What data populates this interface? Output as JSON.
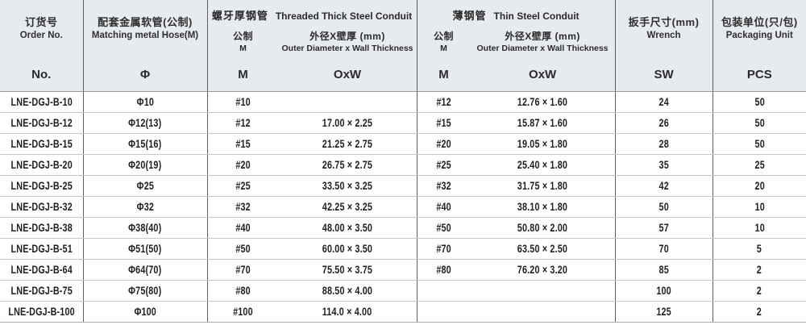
{
  "table": {
    "columns": {
      "order": {
        "zh": "订货号",
        "en": "Order No.",
        "symbol": "No."
      },
      "hose": {
        "zh": "配套金属软管(公制)",
        "en": "Matching metal Hose(M)",
        "symbol": "Φ"
      },
      "threaded": {
        "zh": "螺牙厚钢管",
        "en": "Threaded Thick Steel Conduit",
        "metric": {
          "zh": "公制",
          "en": "M",
          "symbol": "M"
        },
        "size": {
          "zh": "外径X壁厚 (mm)",
          "en": "Outer Diameter x Wall Thickness",
          "symbol": "OxW"
        }
      },
      "thin": {
        "zh": "薄钢管",
        "en": "Thin Steel Conduit",
        "metric": {
          "zh": "公制",
          "en": "M",
          "symbol": "M"
        },
        "size": {
          "zh": "外径X壁厚 (mm)",
          "en": "Outer Diameter x Wall Thickness",
          "symbol": "OxW"
        }
      },
      "wrench": {
        "zh": "扳手尺寸(mm)",
        "en": "Wrench",
        "symbol": "SW"
      },
      "packaging": {
        "zh": "包装单位(只/包)",
        "en": "Packaging Unit",
        "symbol": "PCS"
      }
    },
    "rows": [
      {
        "order_no": "LNE-DGJ-B-10",
        "hose": "Φ10",
        "threaded_m": "#10",
        "threaded_oxw": "",
        "thin_m": "#12",
        "thin_oxw": "12.76 × 1.60",
        "sw": "24",
        "pcs": "50"
      },
      {
        "order_no": "LNE-DGJ-B-12",
        "hose": "Φ12(13)",
        "threaded_m": "#12",
        "threaded_oxw": "17.00 × 2.25",
        "thin_m": "#15",
        "thin_oxw": "15.87 × 1.60",
        "sw": "26",
        "pcs": "50"
      },
      {
        "order_no": "LNE-DGJ-B-15",
        "hose": "Φ15(16)",
        "threaded_m": "#15",
        "threaded_oxw": "21.25 × 2.75",
        "thin_m": "#20",
        "thin_oxw": "19.05 × 1.80",
        "sw": "28",
        "pcs": "50"
      },
      {
        "order_no": "LNE-DGJ-B-20",
        "hose": "Φ20(19)",
        "threaded_m": "#20",
        "threaded_oxw": "26.75 × 2.75",
        "thin_m": "#25",
        "thin_oxw": "25.40 × 1.80",
        "sw": "35",
        "pcs": "25"
      },
      {
        "order_no": "LNE-DGJ-B-25",
        "hose": "Φ25",
        "threaded_m": "#25",
        "threaded_oxw": "33.50 × 3.25",
        "thin_m": "#32",
        "thin_oxw": "31.75 × 1.80",
        "sw": "42",
        "pcs": "20"
      },
      {
        "order_no": "LNE-DGJ-B-32",
        "hose": "Φ32",
        "threaded_m": "#32",
        "threaded_oxw": "42.25 × 3.25",
        "thin_m": "#40",
        "thin_oxw": "38.10 × 1.80",
        "sw": "50",
        "pcs": "10"
      },
      {
        "order_no": "LNE-DGJ-B-38",
        "hose": "Φ38(40)",
        "threaded_m": "#40",
        "threaded_oxw": "48.00 × 3.50",
        "thin_m": "#50",
        "thin_oxw": "50.80 × 2.00",
        "sw": "57",
        "pcs": "10"
      },
      {
        "order_no": "LNE-DGJ-B-51",
        "hose": "Φ51(50)",
        "threaded_m": "#50",
        "threaded_oxw": "60.00 × 3.50",
        "thin_m": "#70",
        "thin_oxw": "63.50 × 2.50",
        "sw": "70",
        "pcs": "5"
      },
      {
        "order_no": "LNE-DGJ-B-64",
        "hose": "Φ64(70)",
        "threaded_m": "#70",
        "threaded_oxw": "75.50 × 3.75",
        "thin_m": "#80",
        "thin_oxw": "76.20 × 3.20",
        "sw": "85",
        "pcs": "2"
      },
      {
        "order_no": "LNE-DGJ-B-75",
        "hose": "Φ75(80)",
        "threaded_m": "#80",
        "threaded_oxw": "88.50 × 4.00",
        "thin_m": "",
        "thin_oxw": "",
        "sw": "100",
        "pcs": "2"
      },
      {
        "order_no": "LNE-DGJ-B-100",
        "hose": "Φ100",
        "threaded_m": "#100",
        "threaded_oxw": "114.0 × 4.00",
        "thin_m": "",
        "thin_oxw": "",
        "sw": "125",
        "pcs": "2"
      }
    ]
  }
}
